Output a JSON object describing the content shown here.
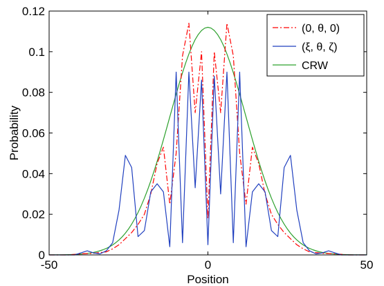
{
  "chart_data": {
    "type": "line",
    "title": "",
    "xlabel": "Position",
    "ylabel": "Probability",
    "xlim": [
      -50,
      50
    ],
    "ylim": [
      0,
      0.12
    ],
    "xticks": [
      -50,
      0,
      50
    ],
    "yticks": [
      0,
      0.02,
      0.04,
      0.06,
      0.08,
      0.1,
      0.12
    ],
    "x_tick_labels": [
      "-50",
      "0",
      "50"
    ],
    "y_tick_labels": [
      "0",
      "0.02",
      "0.04",
      "0.06",
      "0.08",
      "0.1",
      "0.12"
    ],
    "grid": false,
    "legend_position": "top-right",
    "series": [
      {
        "name": "(0, θ, 0)",
        "color": "#ff0000",
        "style": "dashdot",
        "x": [
          -50,
          -44,
          -40,
          -36,
          -32,
          -30,
          -28,
          -26,
          -24,
          -22,
          -20,
          -18,
          -16,
          -14,
          -12,
          -10,
          -8,
          -6,
          -4,
          -2,
          0,
          2,
          4,
          6,
          8,
          10,
          12,
          14,
          16,
          18,
          20,
          22,
          24,
          26,
          28,
          30,
          32,
          36,
          40,
          44,
          50
        ],
        "y": [
          0,
          0,
          0.0005,
          0.0008,
          0.0015,
          0.003,
          0.005,
          0.008,
          0.011,
          0.015,
          0.02,
          0.03,
          0.045,
          0.053,
          0.025,
          0.05,
          0.098,
          0.114,
          0.07,
          0.1,
          0.018,
          0.1,
          0.07,
          0.114,
          0.098,
          0.05,
          0.025,
          0.053,
          0.045,
          0.03,
          0.02,
          0.015,
          0.011,
          0.008,
          0.005,
          0.003,
          0.0015,
          0.0008,
          0.0005,
          0,
          0
        ]
      },
      {
        "name": "(ξ, θ, ζ)",
        "color": "#1f3fbf",
        "style": "solid",
        "x": [
          -50,
          -42,
          -40,
          -38,
          -36,
          -34,
          -32,
          -30,
          -28,
          -26,
          -24,
          -22,
          -20,
          -18,
          -16,
          -14,
          -12,
          -10,
          -8,
          -6,
          -4,
          -2,
          0,
          2,
          4,
          6,
          8,
          10,
          12,
          14,
          16,
          18,
          20,
          22,
          24,
          26,
          28,
          30,
          32,
          34,
          36,
          38,
          40,
          42,
          50
        ],
        "y": [
          0,
          0,
          0.001,
          0.002,
          0.001,
          0.0005,
          0.002,
          0.006,
          0.022,
          0.049,
          0.043,
          0.009,
          0.012,
          0.031,
          0.035,
          0.031,
          0.004,
          0.09,
          0.006,
          0.09,
          0.033,
          0.086,
          0.005,
          0.088,
          0.03,
          0.09,
          0.006,
          0.09,
          0.004,
          0.031,
          0.035,
          0.031,
          0.012,
          0.009,
          0.043,
          0.049,
          0.022,
          0.006,
          0.002,
          0.0005,
          0.001,
          0.002,
          0.001,
          0,
          0
        ]
      },
      {
        "name": "CRW",
        "color": "#2ca02c",
        "style": "solid",
        "mu": 0,
        "sigma": 12,
        "peak": 0.112,
        "x_range": [
          -50,
          50
        ]
      }
    ]
  }
}
